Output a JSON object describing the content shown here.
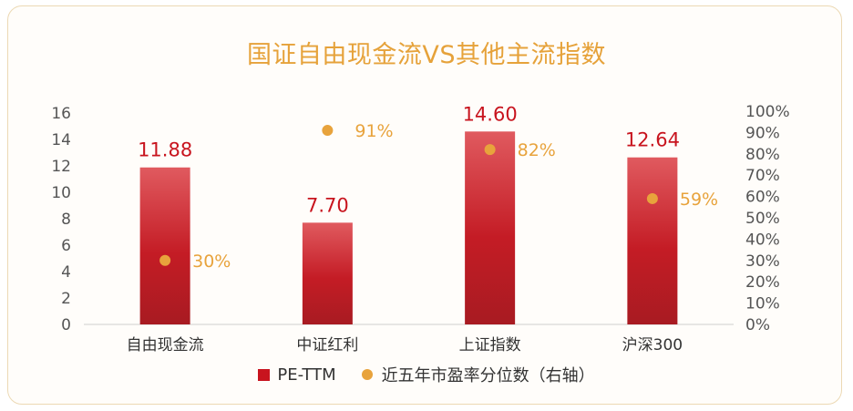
{
  "chart_data": {
    "type": "bar",
    "title": "国证自由现金流VS其他主流指数",
    "categories": [
      "自由现金流",
      "中证红利",
      "上证指数",
      "沪深300"
    ],
    "series": [
      {
        "name": "PE-TTM",
        "axis": "left",
        "values": [
          11.88,
          7.7,
          14.6,
          12.64
        ],
        "labels": [
          "11.88",
          "7.70",
          "14.60",
          "12.64"
        ]
      },
      {
        "name": "近五年市盈率分位数（右轴）",
        "axis": "right",
        "values": [
          0.3,
          0.91,
          0.82,
          0.59
        ],
        "labels": [
          "30%",
          "91%",
          "82%",
          "59%"
        ]
      }
    ],
    "ylim": [
      0,
      16
    ],
    "yticks": [
      "0",
      "2",
      "4",
      "6",
      "8",
      "10",
      "12",
      "14",
      "16"
    ],
    "y2lim": [
      0,
      1
    ],
    "y2ticks": [
      "0%",
      "10%",
      "20%",
      "30%",
      "40%",
      "50%",
      "60%",
      "70%",
      "80%",
      "90%",
      "100%"
    ],
    "legend_position": "bottom",
    "grid": false,
    "colors": {
      "bar_top": "#e05a5f",
      "bar_bottom": "#a81b22",
      "bar_label": "#c8141e",
      "dot": "#e8a33c",
      "dot_label": "#e8a33c",
      "axis_text": "#555555",
      "title": "#e6a23a"
    }
  }
}
